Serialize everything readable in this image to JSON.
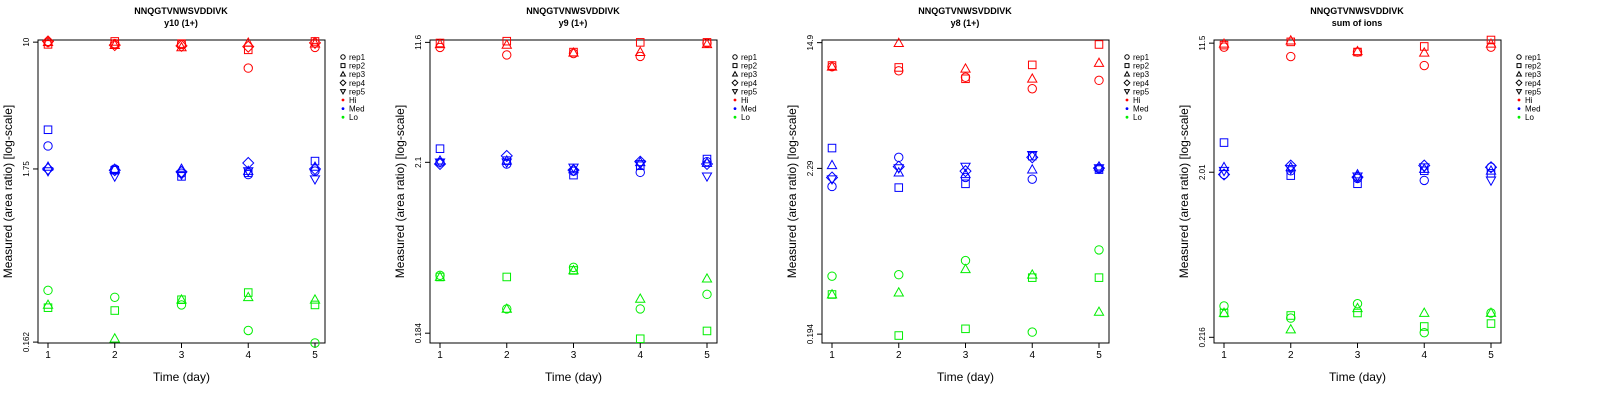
{
  "chart_data": [
    {
      "type": "scatter",
      "title": "NNQGTVNWSVDDIVK",
      "subtitle": "y10 (1+)",
      "xlabel": "Time (day)",
      "ylabel": "Measured (area ratio) [log-scale]",
      "x": [
        1,
        2,
        3,
        4,
        5
      ],
      "y_ticks": [
        "10",
        "1.75",
        "0.162"
      ],
      "y_log_range": [
        0.16,
        10.3
      ],
      "legend_position": "right",
      "legend": [
        {
          "label": "rep1",
          "marker": "circle"
        },
        {
          "label": "rep2",
          "marker": "square"
        },
        {
          "label": "rep3",
          "marker": "triangle-up"
        },
        {
          "label": "rep4",
          "marker": "diamond"
        },
        {
          "label": "rep5",
          "marker": "triangle-down"
        },
        {
          "label": "Hi",
          "color": "#ff0000"
        },
        {
          "label": "Med",
          "color": "#0000ff"
        },
        {
          "label": "Lo",
          "color": "#00ee00"
        }
      ],
      "series": [
        {
          "group": "Hi",
          "rep": "rep1",
          "values": [
            10.0,
            9.8,
            9.7,
            7.0,
            9.3
          ]
        },
        {
          "group": "Hi",
          "rep": "rep2",
          "values": [
            9.7,
            10.1,
            9.8,
            9.0,
            10.1
          ]
        },
        {
          "group": "Hi",
          "rep": "rep3",
          "values": [
            10.0,
            9.6,
            9.3,
            9.9,
            9.8
          ]
        },
        {
          "group": "Hi",
          "rep": "rep4",
          "values": [
            10.1,
            9.6,
            9.5,
            9.4,
            9.9
          ]
        },
        {
          "group": "Med",
          "rep": "rep1",
          "values": [
            2.4,
            1.75,
            1.65,
            1.62,
            1.7
          ]
        },
        {
          "group": "Med",
          "rep": "rep2",
          "values": [
            3.0,
            1.72,
            1.58,
            1.66,
            1.95
          ]
        },
        {
          "group": "Med",
          "rep": "rep3",
          "values": [
            1.8,
            1.75,
            1.75,
            1.7,
            1.8
          ]
        },
        {
          "group": "Med",
          "rep": "rep4",
          "values": [
            1.75,
            1.72,
            1.68,
            1.9,
            1.75
          ]
        },
        {
          "group": "Med",
          "rep": "rep5",
          "values": [
            1.7,
            1.58,
            1.62,
            1.7,
            1.52
          ]
        },
        {
          "group": "Lo",
          "rep": "rep1",
          "values": [
            0.33,
            0.3,
            0.27,
            0.19,
            0.16
          ]
        },
        {
          "group": "Lo",
          "rep": "rep2",
          "values": [
            0.26,
            0.25,
            0.29,
            0.32,
            0.27
          ]
        },
        {
          "group": "Lo",
          "rep": "rep3",
          "values": [
            0.27,
            0.17,
            0.29,
            0.3,
            0.29
          ]
        }
      ]
    },
    {
      "type": "scatter",
      "title": "NNQGTVNWSVDDIVK",
      "subtitle": "y9 (1+)",
      "xlabel": "Time (day)",
      "ylabel": "Measured (area ratio) [log-scale]",
      "x": [
        1,
        2,
        3,
        4,
        5
      ],
      "y_ticks": [
        "11.6",
        "2.1",
        "0.184"
      ],
      "y_log_range": [
        0.16,
        12.0
      ],
      "legend_position": "right",
      "legend": [
        {
          "label": "rep1",
          "marker": "circle"
        },
        {
          "label": "rep2",
          "marker": "square"
        },
        {
          "label": "rep3",
          "marker": "triangle-up"
        },
        {
          "label": "rep4",
          "marker": "diamond"
        },
        {
          "label": "rep5",
          "marker": "triangle-down"
        },
        {
          "label": "Hi",
          "color": "#ff0000"
        },
        {
          "label": "Med",
          "color": "#0000ff"
        },
        {
          "label": "Lo",
          "color": "#00ee00"
        }
      ],
      "series": [
        {
          "group": "Hi",
          "rep": "rep1",
          "values": [
            10.8,
            9.7,
            9.9,
            9.5,
            11.5
          ]
        },
        {
          "group": "Hi",
          "rep": "rep2",
          "values": [
            11.5,
            11.8,
            10.1,
            11.6,
            11.6
          ]
        },
        {
          "group": "Hi",
          "rep": "rep3",
          "values": [
            11.3,
            11.2,
            10.0,
            10.1,
            11.3
          ]
        },
        {
          "group": "Med",
          "rep": "rep1",
          "values": [
            2.1,
            2.05,
            1.85,
            1.82,
            2.12
          ]
        },
        {
          "group": "Med",
          "rep": "rep2",
          "values": [
            2.55,
            2.15,
            1.75,
            2.0,
            2.2
          ]
        },
        {
          "group": "Med",
          "rep": "rep3",
          "values": [
            2.15,
            2.15,
            1.9,
            2.1,
            2.08
          ]
        },
        {
          "group": "Med",
          "rep": "rep4",
          "values": [
            2.05,
            2.3,
            1.88,
            2.12,
            2.05
          ]
        },
        {
          "group": "Med",
          "rep": "rep5",
          "values": [
            2.1,
            2.1,
            1.95,
            2.05,
            1.72
          ]
        },
        {
          "group": "Lo",
          "rep": "rep1",
          "values": [
            0.42,
            0.26,
            0.47,
            0.26,
            0.32
          ]
        },
        {
          "group": "Lo",
          "rep": "rep2",
          "values": [
            0.41,
            0.41,
            0.45,
            0.17,
            0.19
          ]
        },
        {
          "group": "Lo",
          "rep": "rep3",
          "values": [
            0.41,
            0.26,
            0.45,
            0.3,
            0.4
          ]
        }
      ]
    },
    {
      "type": "scatter",
      "title": "NNQGTVNWSVDDIVK",
      "subtitle": "y8 (1+)",
      "xlabel": "Time (day)",
      "ylabel": "Measured (area ratio) [log-scale]",
      "x": [
        1,
        2,
        3,
        4,
        5
      ],
      "y_ticks": [
        "14.9",
        "2.29",
        "0.194"
      ],
      "y_log_range": [
        0.17,
        15.5
      ],
      "legend_position": "right",
      "legend": [
        {
          "label": "rep1",
          "marker": "circle"
        },
        {
          "label": "rep2",
          "marker": "square"
        },
        {
          "label": "rep3",
          "marker": "triangle-up"
        },
        {
          "label": "rep4",
          "marker": "diamond"
        },
        {
          "label": "rep5",
          "marker": "triangle-down"
        },
        {
          "label": "Hi",
          "color": "#ff0000"
        },
        {
          "label": "Med",
          "color": "#0000ff"
        },
        {
          "label": "Lo",
          "color": "#00ee00"
        }
      ],
      "series": [
        {
          "group": "Hi",
          "rep": "rep1",
          "values": [
            10.4,
            9.8,
            8.9,
            7.5,
            8.5
          ]
        },
        {
          "group": "Hi",
          "rep": "rep2",
          "values": [
            10.6,
            10.3,
            8.7,
            10.7,
            14.5
          ]
        },
        {
          "group": "Hi",
          "rep": "rep3",
          "values": [
            10.4,
            14.8,
            10.1,
            8.7,
            11.0
          ]
        },
        {
          "group": "Med",
          "rep": "rep1",
          "values": [
            1.75,
            2.7,
            2.0,
            1.95,
            2.28
          ]
        },
        {
          "group": "Med",
          "rep": "rep2",
          "values": [
            3.1,
            1.72,
            1.82,
            2.75,
            2.25
          ]
        },
        {
          "group": "Med",
          "rep": "rep3",
          "values": [
            2.4,
            2.15,
            2.1,
            2.25,
            2.35
          ]
        },
        {
          "group": "Med",
          "rep": "rep4",
          "values": [
            2.0,
            2.35,
            2.2,
            2.7,
            2.3
          ]
        },
        {
          "group": "Med",
          "rep": "rep5",
          "values": [
            1.95,
            2.3,
            2.35,
            2.8,
            2.3
          ]
        },
        {
          "group": "Lo",
          "rep": "rep1",
          "values": [
            0.46,
            0.47,
            0.58,
            0.2,
            0.68
          ]
        },
        {
          "group": "Lo",
          "rep": "rep2",
          "values": [
            0.35,
            0.19,
            0.21,
            0.45,
            0.45
          ]
        },
        {
          "group": "Lo",
          "rep": "rep3",
          "values": [
            0.35,
            0.36,
            0.51,
            0.47,
            0.27
          ]
        }
      ]
    },
    {
      "type": "scatter",
      "title": "NNQGTVNWSVDDIVK",
      "subtitle": "sum of ions",
      "xlabel": "Time (day)",
      "ylabel": "Measured (area ratio) [log-scale]",
      "x": [
        1,
        2,
        3,
        4,
        5
      ],
      "y_ticks": [
        "11.5",
        "2.01",
        "0.216"
      ],
      "y_log_range": [
        0.2,
        12.0
      ],
      "legend_position": "right",
      "legend": [
        {
          "label": "rep1",
          "marker": "circle"
        },
        {
          "label": "rep2",
          "marker": "square"
        },
        {
          "label": "rep3",
          "marker": "triangle-up"
        },
        {
          "label": "rep4",
          "marker": "diamond"
        },
        {
          "label": "rep5",
          "marker": "triangle-down"
        },
        {
          "label": "Hi",
          "color": "#ff0000"
        },
        {
          "label": "Med",
          "color": "#0000ff"
        },
        {
          "label": "Lo",
          "color": "#00ee00"
        }
      ],
      "series": [
        {
          "group": "Hi",
          "rep": "rep1",
          "values": [
            10.9,
            9.6,
            10.2,
            8.5,
            10.9
          ]
        },
        {
          "group": "Hi",
          "rep": "rep2",
          "values": [
            11.2,
            11.7,
            10.2,
            11.0,
            12.0
          ]
        },
        {
          "group": "Hi",
          "rep": "rep3",
          "values": [
            11.4,
            11.9,
            10.3,
            10.1,
            11.4
          ]
        },
        {
          "group": "Med",
          "rep": "rep1",
          "values": [
            1.95,
            2.05,
            1.85,
            1.8,
            2.15
          ]
        },
        {
          "group": "Med",
          "rep": "rep2",
          "values": [
            3.0,
            1.92,
            1.72,
            2.05,
            1.98
          ]
        },
        {
          "group": "Med",
          "rep": "rep3",
          "values": [
            2.15,
            2.15,
            1.95,
            2.1,
            2.05
          ]
        },
        {
          "group": "Med",
          "rep": "rep4",
          "values": [
            1.95,
            2.2,
            1.88,
            2.2,
            2.15
          ]
        },
        {
          "group": "Med",
          "rep": "rep5",
          "values": [
            2.05,
            2.1,
            1.9,
            2.15,
            1.8
          ]
        },
        {
          "group": "Lo",
          "rep": "rep1",
          "values": [
            0.33,
            0.28,
            0.34,
            0.23,
            0.3
          ]
        },
        {
          "group": "Lo",
          "rep": "rep2",
          "values": [
            0.3,
            0.29,
            0.3,
            0.25,
            0.26
          ]
        },
        {
          "group": "Lo",
          "rep": "rep3",
          "values": [
            0.3,
            0.24,
            0.32,
            0.3,
            0.3
          ]
        }
      ]
    }
  ]
}
